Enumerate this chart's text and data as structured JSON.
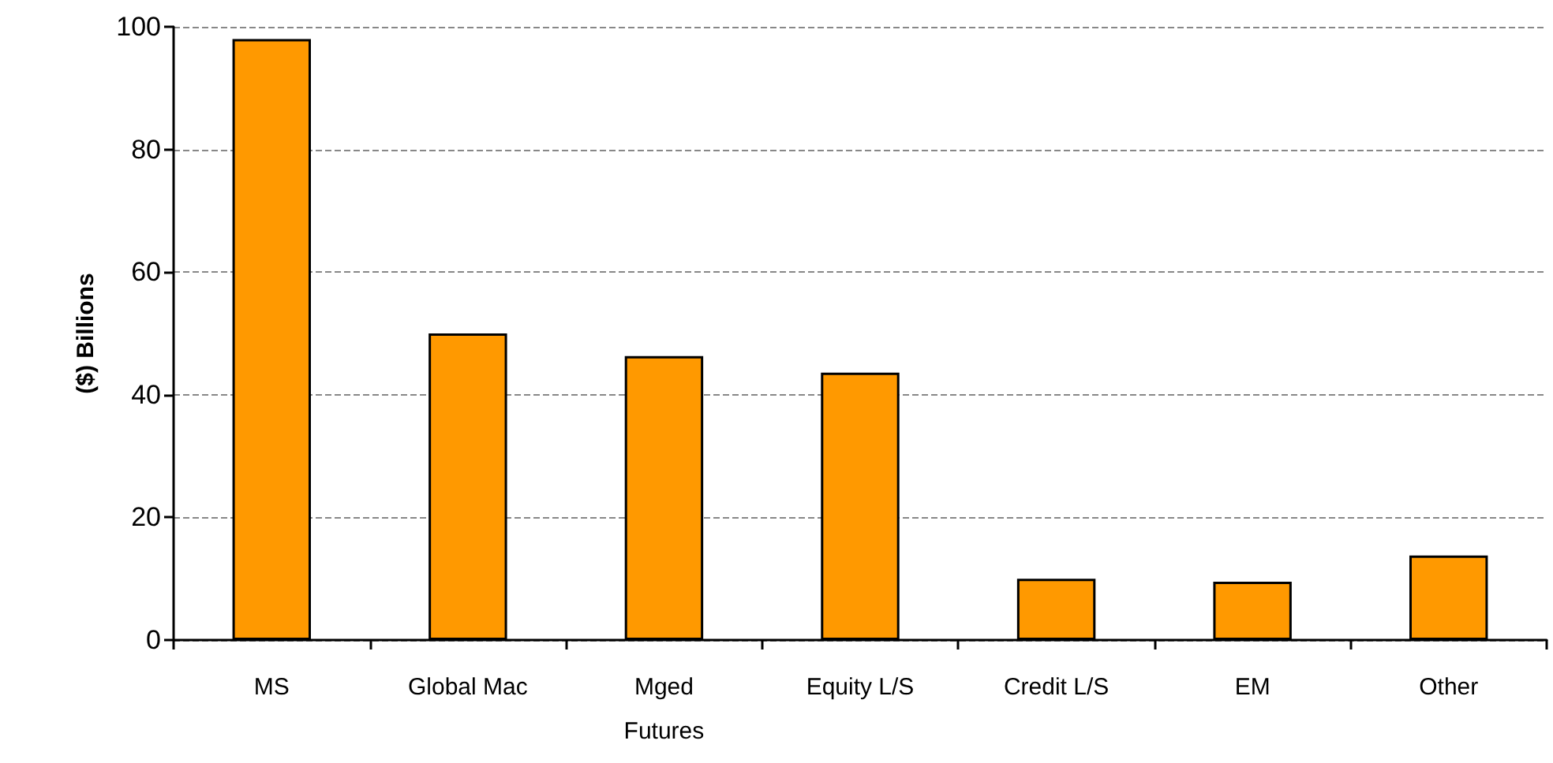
{
  "chart_data": {
    "type": "bar",
    "ylabel": "($) Billions",
    "categories": [
      "MS",
      "Global Mac",
      "Mged\nFutures",
      "Equity L/S",
      "Credit L/S",
      "EM",
      "Other"
    ],
    "values": [
      98,
      50,
      46.3,
      43.6,
      10,
      9.5,
      13.8
    ],
    "color": "#ff9900",
    "ylim": [
      0,
      100
    ],
    "yticks": [
      0,
      20,
      40,
      60,
      80,
      100
    ],
    "grid": "y"
  }
}
